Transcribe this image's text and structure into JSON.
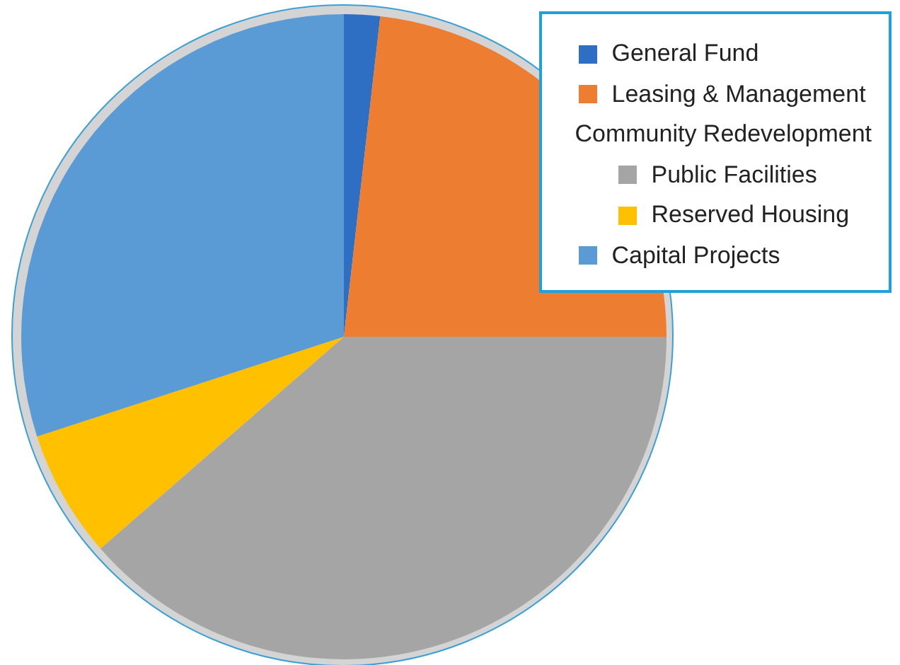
{
  "chart_data": {
    "type": "pie",
    "legend_title": "Community Redevelopment",
    "categories": [
      "General Fund",
      "Leasing & Management",
      "Public Facilities",
      "Reserved Housing",
      "Capital Projects"
    ],
    "values": [
      1.8,
      23.2,
      38.6,
      6.4,
      30.0
    ],
    "colors": [
      "#2e6fc4",
      "#ed7d31",
      "#a5a5a5",
      "#ffc000",
      "#5b9bd5"
    ],
    "legend": "top right"
  }
}
